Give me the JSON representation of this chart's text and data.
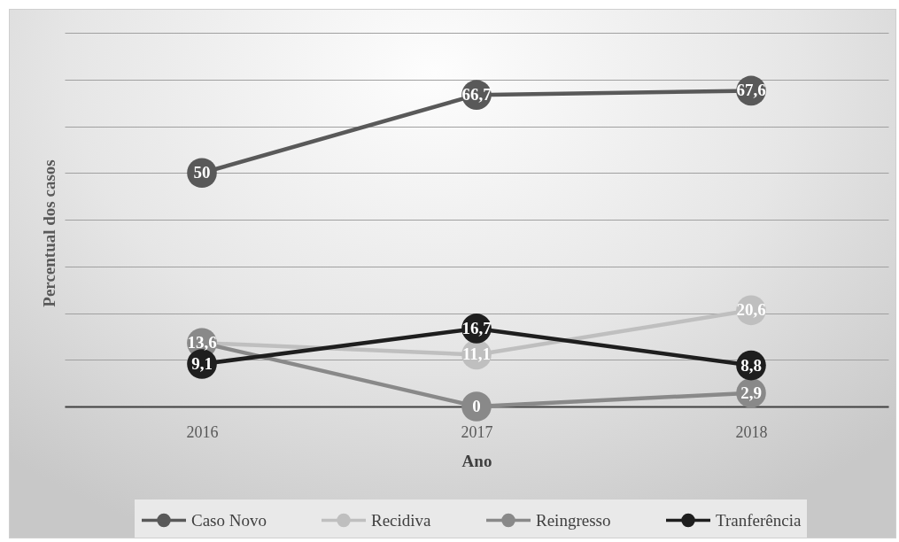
{
  "chart_data": {
    "type": "line",
    "xlabel": "Ano",
    "ylabel": "Percentual dos casos",
    "categories": [
      "2016",
      "2017",
      "2018"
    ],
    "series": [
      {
        "name": "Caso Novo",
        "color": "#595959",
        "values": [
          50,
          66.7,
          67.6
        ],
        "value_labels": [
          "50",
          "66,7",
          "67,6"
        ]
      },
      {
        "name": "Recidiva",
        "color": "#bfbfbf",
        "values": [
          13.6,
          11.1,
          20.6
        ],
        "value_labels": [
          "13,6",
          "11,1",
          "20,6"
        ]
      },
      {
        "name": "Reingresso",
        "color": "#898989",
        "values": [
          13.6,
          0,
          2.9
        ],
        "value_labels": [
          null,
          "0",
          "2,9"
        ]
      },
      {
        "name": "Tranferência",
        "color": "#1e1e1e",
        "values": [
          9.1,
          16.7,
          8.8
        ],
        "value_labels": [
          "9,1",
          "16,7",
          "8,8"
        ]
      }
    ],
    "ylim": [
      0,
      80
    ],
    "yticks": [
      {
        "value": 0,
        "label": null
      },
      {
        "value": 10,
        "label": null
      },
      {
        "value": 20,
        "label": null
      },
      {
        "value": 30,
        "label": null
      },
      {
        "value": 40,
        "label": null
      },
      {
        "value": 50,
        "label": null
      },
      {
        "value": 60,
        "label": null
      },
      {
        "value": 70,
        "label": null
      },
      {
        "value": 80,
        "label": null
      }
    ],
    "tick_labels": "x",
    "grid": "y",
    "legend": "bottom",
    "marker": "circle"
  }
}
